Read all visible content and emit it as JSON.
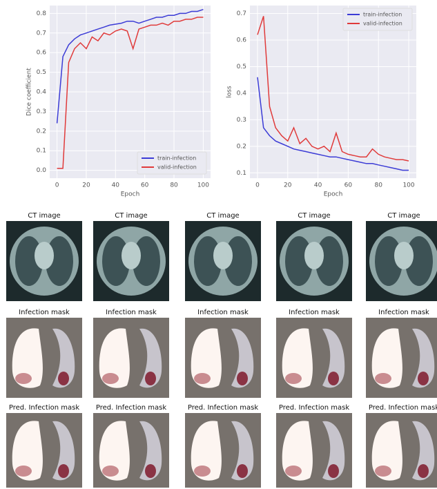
{
  "chart_data": [
    {
      "type": "line",
      "x_label": "Epoch",
      "y_label": "Dice coefficient",
      "x": [
        0,
        4,
        8,
        12,
        16,
        20,
        24,
        28,
        32,
        36,
        40,
        44,
        48,
        52,
        56,
        60,
        64,
        68,
        72,
        76,
        80,
        84,
        88,
        92,
        96,
        100
      ],
      "series": [
        {
          "name": "train-infection",
          "color": "#3b3bd6",
          "values": [
            0.24,
            0.58,
            0.64,
            0.67,
            0.69,
            0.7,
            0.71,
            0.72,
            0.73,
            0.74,
            0.745,
            0.75,
            0.76,
            0.76,
            0.75,
            0.76,
            0.77,
            0.78,
            0.78,
            0.79,
            0.79,
            0.8,
            0.8,
            0.81,
            0.81,
            0.82
          ]
        },
        {
          "name": "valid-infection",
          "color": "#e03a3a",
          "values": [
            0.01,
            0.01,
            0.55,
            0.62,
            0.65,
            0.62,
            0.68,
            0.66,
            0.7,
            0.69,
            0.71,
            0.72,
            0.71,
            0.62,
            0.72,
            0.73,
            0.74,
            0.74,
            0.75,
            0.74,
            0.76,
            0.76,
            0.77,
            0.77,
            0.78,
            0.78
          ]
        }
      ],
      "xlim": [
        -5,
        105
      ],
      "xticks": [
        0,
        20,
        40,
        60,
        80,
        100
      ],
      "ylim": [
        -0.04,
        0.84
      ],
      "yticks": [
        {
          "value": 0,
          "label": "0.0"
        },
        0.1,
        0.2,
        0.3,
        0.4,
        0.5,
        0.6,
        0.7,
        0.8
      ],
      "grid": true,
      "legend": "lower right"
    },
    {
      "type": "line",
      "x_label": "Epoch",
      "y_label": "loss",
      "x": [
        0,
        4,
        8,
        12,
        16,
        20,
        24,
        28,
        32,
        36,
        40,
        44,
        48,
        52,
        56,
        60,
        64,
        68,
        72,
        76,
        80,
        84,
        88,
        92,
        96,
        100
      ],
      "series": [
        {
          "name": "train-infection",
          "color": "#3b3bd6",
          "values": [
            0.46,
            0.27,
            0.24,
            0.22,
            0.21,
            0.2,
            0.19,
            0.185,
            0.18,
            0.175,
            0.17,
            0.165,
            0.16,
            0.16,
            0.155,
            0.15,
            0.145,
            0.14,
            0.135,
            0.135,
            0.13,
            0.125,
            0.12,
            0.115,
            0.11,
            0.11
          ]
        },
        {
          "name": "valid-infection",
          "color": "#e03a3a",
          "values": [
            0.62,
            0.69,
            0.35,
            0.27,
            0.24,
            0.22,
            0.27,
            0.21,
            0.23,
            0.2,
            0.19,
            0.2,
            0.18,
            0.25,
            0.18,
            0.17,
            0.165,
            0.16,
            0.16,
            0.19,
            0.17,
            0.16,
            0.155,
            0.15,
            0.15,
            0.145
          ]
        }
      ],
      "xlim": [
        -5,
        105
      ],
      "xticks": [
        0,
        20,
        40,
        60,
        80,
        100
      ],
      "ylim": [
        0.08,
        0.73
      ],
      "yticks": [
        0.1,
        0.2,
        0.3,
        0.4,
        0.5,
        0.6,
        0.7
      ],
      "grid": true,
      "legend": "upper right"
    }
  ],
  "image_grid": [
    [
      "CT image",
      "CT image",
      "CT image",
      "CT image",
      "CT image"
    ],
    [
      "Infection mask",
      "Infection mask",
      "Infection mask",
      "Infection mask",
      "Infection mask"
    ],
    [
      "Pred. Infection mask",
      "Pred. Infection mask",
      "Pred. Infection mask",
      "Pred. Infection mask",
      "Pred. Infection mask"
    ]
  ]
}
